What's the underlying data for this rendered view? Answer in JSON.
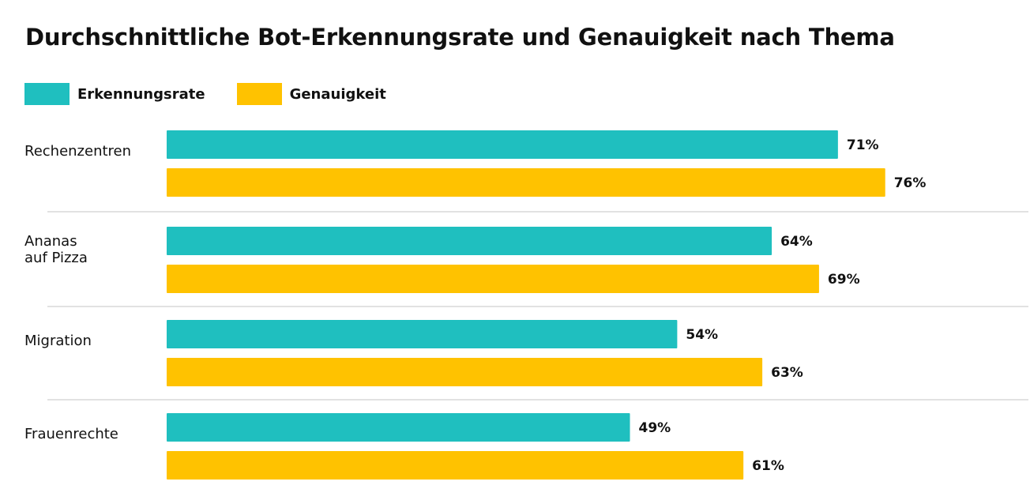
{
  "chart_data": {
    "type": "bar",
    "orientation": "horizontal",
    "title": "Durchschnittliche Bot-Erkennungsrate und Genauigkeit nach Thema",
    "categories": [
      [
        "Rechenzentren"
      ],
      [
        "Ananas",
        "auf Pizza"
      ],
      [
        "Migration"
      ],
      [
        "Frauenrechte"
      ]
    ],
    "series": [
      {
        "name": "Erkennungsrate",
        "color": "#1fbfbf",
        "values": [
          71,
          64,
          54,
          49
        ],
        "labels": [
          "71%",
          "64%",
          "54%",
          "49%"
        ]
      },
      {
        "name": "Genauigkeit",
        "color": "#ffc200",
        "values": [
          76,
          69,
          63,
          61
        ],
        "labels": [
          "76%",
          "69%",
          "63%",
          "61%"
        ]
      }
    ],
    "xlim": [
      0,
      100
    ],
    "unit": "%",
    "legend_position": "top-left",
    "grid": false
  }
}
